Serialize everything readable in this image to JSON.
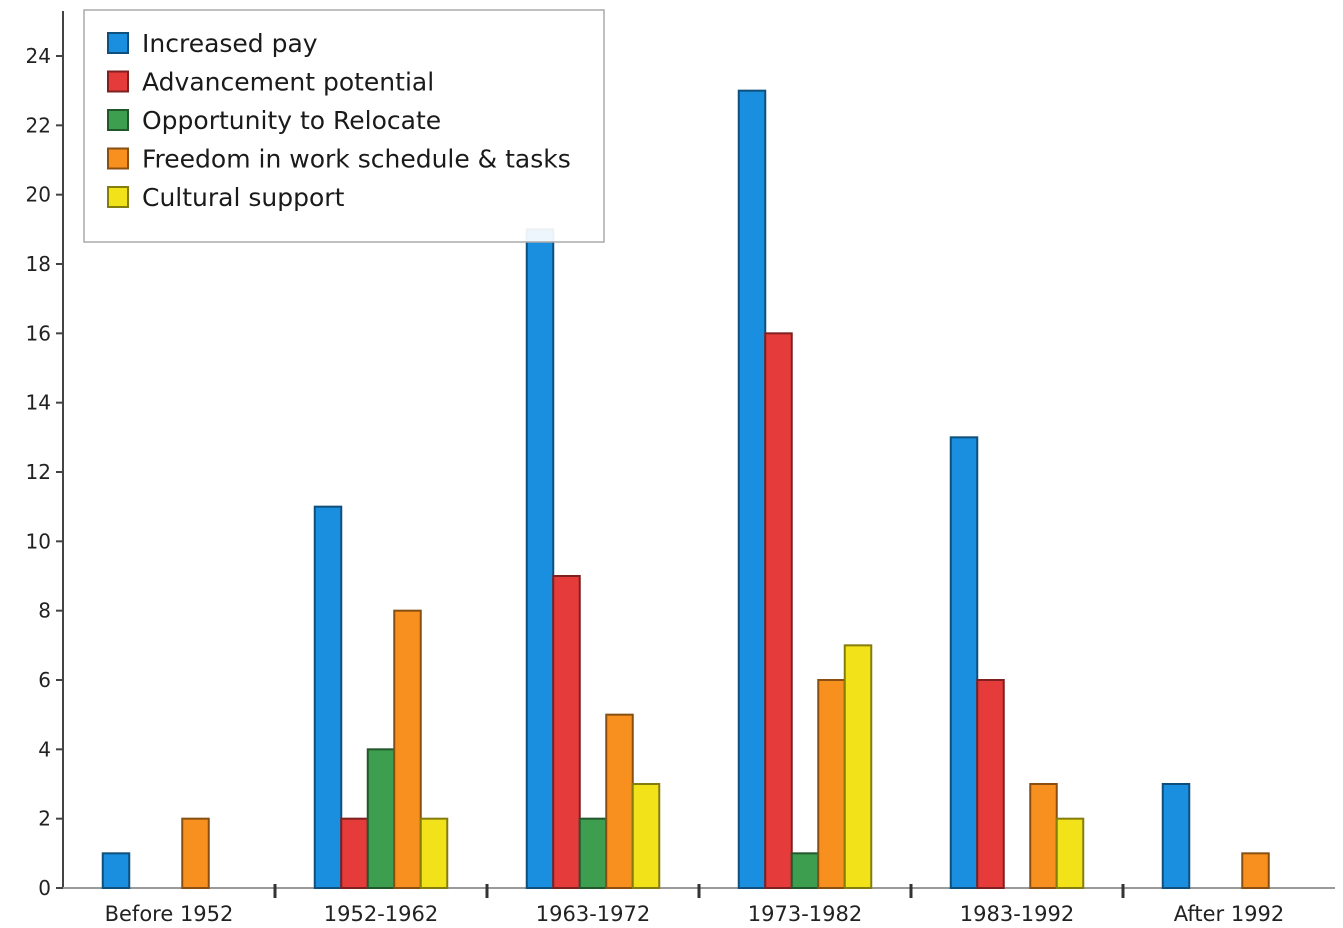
{
  "chart_data": {
    "type": "bar",
    "title": "",
    "xlabel": "",
    "ylabel": "",
    "ylim": [
      0,
      24
    ],
    "yticks": [
      0,
      2,
      4,
      6,
      8,
      10,
      12,
      14,
      16,
      18,
      20,
      22,
      24
    ],
    "categories": [
      "Before 1952",
      "1952-1962",
      "1963-1972",
      "1973-1982",
      "1983-1992",
      "After 1992"
    ],
    "series": [
      {
        "name": "Increased pay",
        "color": "#1a8fe0",
        "values": [
          1,
          11,
          19,
          23,
          13,
          3
        ]
      },
      {
        "name": "Advancement potential",
        "color": "#e63b3b",
        "values": [
          0,
          2,
          9,
          16,
          6,
          0
        ]
      },
      {
        "name": "Opportunity to Relocate",
        "color": "#3e9e4f",
        "values": [
          0,
          4,
          2,
          1,
          0,
          0
        ]
      },
      {
        "name": "Freedom in work schedule & tasks",
        "color": "#f7901e",
        "values": [
          2,
          8,
          5,
          6,
          3,
          1
        ]
      },
      {
        "name": "Cultural support",
        "color": "#f2e21a",
        "values": [
          0,
          2,
          3,
          7,
          2,
          0
        ]
      }
    ],
    "legend_position": "top-left",
    "grid": false
  }
}
